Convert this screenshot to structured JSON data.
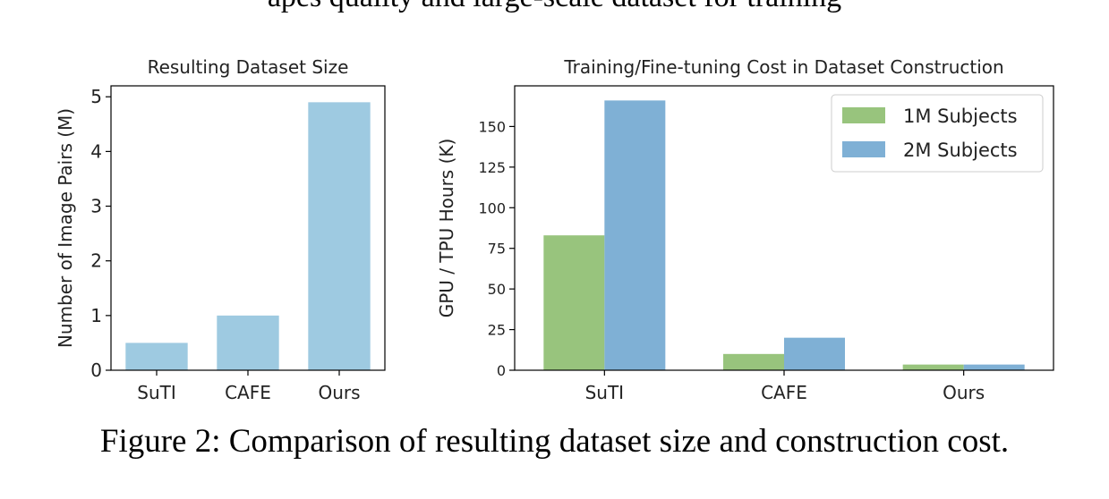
{
  "header_text": "apes quality and large-scale dataset for training",
  "caption": "Figure 2: Comparison of resulting dataset size and construction cost.",
  "chart_data": [
    {
      "type": "bar",
      "title": "Resulting Dataset Size",
      "xlabel": "",
      "ylabel": "Number of Image Pairs (M)",
      "categories": [
        "SuTI",
        "CAFE",
        "Ours"
      ],
      "values": [
        0.5,
        1.0,
        4.9
      ],
      "ylim": [
        0,
        5.2
      ],
      "yticks": [
        0,
        1,
        2,
        3,
        4,
        5
      ],
      "color": "#9ecae1",
      "grid": false
    },
    {
      "type": "bar",
      "title": "Training/Fine-tuning Cost in Dataset Construction",
      "xlabel": "",
      "ylabel": "GPU / TPU Hours (K)",
      "categories": [
        "SuTI",
        "CAFE",
        "Ours"
      ],
      "series": [
        {
          "name": "1M Subjects",
          "values": [
            83,
            10,
            3.5
          ],
          "color": "#98c47d"
        },
        {
          "name": "2M Subjects",
          "values": [
            166,
            20,
            3.5
          ],
          "color": "#7fb0d5"
        }
      ],
      "ylim": [
        0,
        175
      ],
      "yticks": [
        0,
        25,
        50,
        75,
        100,
        125,
        150
      ],
      "legend": "top-right",
      "grid": false
    }
  ]
}
